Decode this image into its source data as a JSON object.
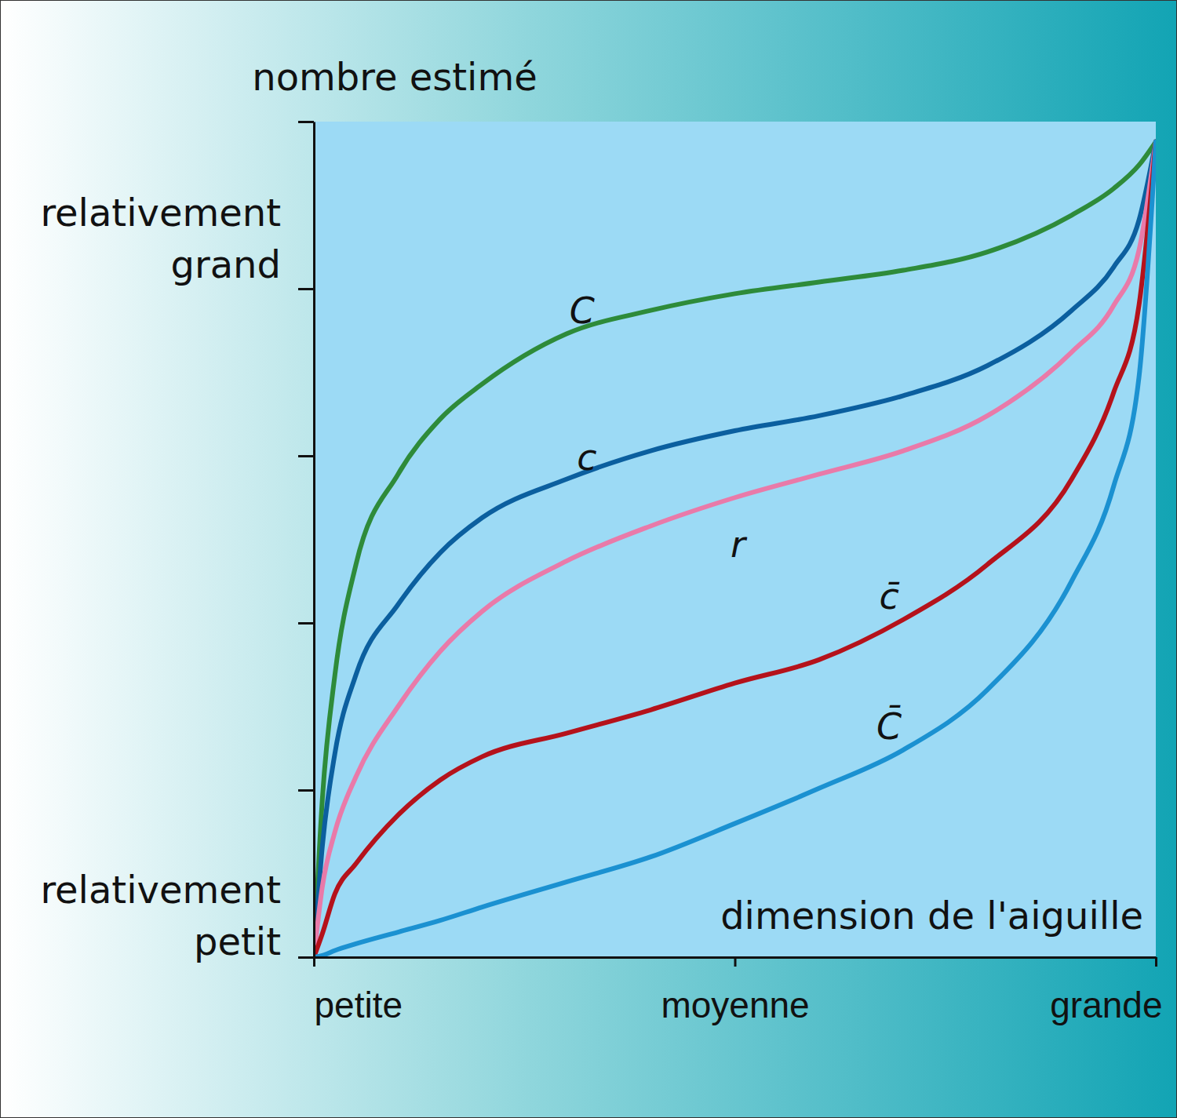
{
  "chart_data": {
    "type": "line",
    "ylabel": "nombre estimé",
    "xlabel": "dimension de l'aiguille",
    "x": [
      0,
      0.01,
      0.025,
      0.05,
      0.1,
      0.15,
      0.2,
      0.3,
      0.4,
      0.5,
      0.6,
      0.7,
      0.8,
      0.9,
      0.95,
      0.98,
      1
    ],
    "xlim": [
      0,
      1
    ],
    "xticks": [
      {
        "value": 0,
        "label": "petite"
      },
      {
        "value": 0.5,
        "label": "moyenne"
      },
      {
        "value": 1,
        "label": "grande"
      }
    ],
    "ylim": [
      0,
      5
    ],
    "yticks": [
      0,
      1,
      2,
      3,
      4,
      5
    ],
    "tick_labels": "x",
    "grid": false,
    "annotations": [
      {
        "text": "relativement grand",
        "y": 4.3
      },
      {
        "text": "relativement petit",
        "y": 0.25
      }
    ],
    "series": [
      {
        "name": "C",
        "color": "#2e8b3a",
        "values": [
          0,
          0.94,
          1.69,
          2.35,
          2.89,
          3.22,
          3.43,
          3.73,
          3.87,
          3.97,
          4.04,
          4.11,
          4.22,
          4.44,
          4.6,
          4.74,
          4.88
        ]
      },
      {
        "name": "c",
        "color": "#0b5f9f",
        "values": [
          0,
          0.66,
          1.22,
          1.69,
          2.11,
          2.42,
          2.63,
          2.86,
          3.03,
          3.15,
          3.24,
          3.36,
          3.54,
          3.87,
          4.13,
          4.41,
          4.88
        ]
      },
      {
        "name": "r",
        "color": "#e97aa9",
        "values": [
          0,
          0.42,
          0.75,
          1.08,
          1.5,
          1.83,
          2.07,
          2.37,
          2.58,
          2.75,
          2.89,
          3.03,
          3.24,
          3.62,
          3.9,
          4.23,
          4.88
        ]
      },
      {
        "name": "c̄",
        "color": "#b5121b",
        "values": [
          0,
          0.14,
          0.38,
          0.56,
          0.85,
          1.06,
          1.2,
          1.34,
          1.48,
          1.64,
          1.78,
          2.02,
          2.35,
          2.86,
          3.38,
          3.9,
          4.88
        ]
      },
      {
        "name": "C̄",
        "color": "#1b91d1",
        "values": [
          0,
          0.01,
          0.04,
          0.08,
          0.15,
          0.22,
          0.3,
          0.45,
          0.6,
          0.8,
          1.01,
          1.24,
          1.6,
          2.25,
          2.82,
          3.47,
          4.88
        ]
      }
    ]
  }
}
